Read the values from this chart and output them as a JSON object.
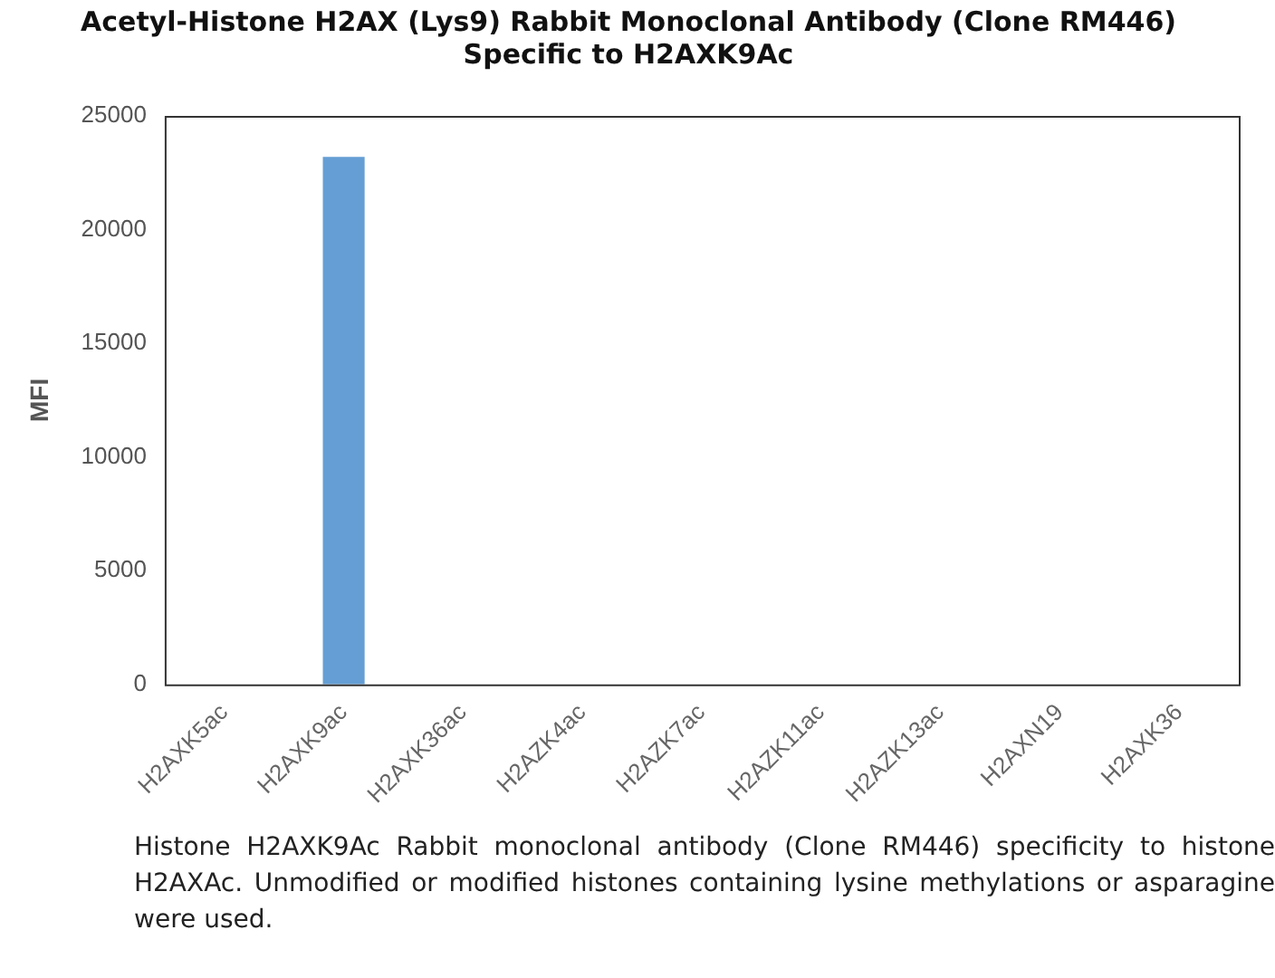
{
  "chart_data": {
    "type": "bar",
    "title": [
      "Acetyl-Histone H2AX (Lys9) Rabbit Monoclonal Antibody (Clone RM446)",
      "Specific to H2AXK9Ac"
    ],
    "ylabel": "MFI",
    "categories": [
      "H2AXK5ac",
      "H2AXK9ac",
      "H2AXK36ac",
      "H2AZK4ac",
      "H2AZK7ac",
      "H2AZK11ac",
      "H2AZK13ac",
      "H2AXN19",
      "H2AXK36"
    ],
    "values": [
      0,
      23200,
      0,
      0,
      0,
      0,
      0,
      0,
      0
    ],
    "color": "#659ed4",
    "ylim": [
      0,
      25000
    ],
    "yticks": [
      0,
      5000,
      10000,
      15000,
      20000,
      25000
    ],
    "grid": false,
    "legend": false,
    "annotations": [
      "Histone H2AXK9Ac Rabbit monoclonal antibody (Clone RM446) specificity to histone H2AXAc. Unmodified or modified histones containing lysine methylations or asparagine were used."
    ]
  }
}
